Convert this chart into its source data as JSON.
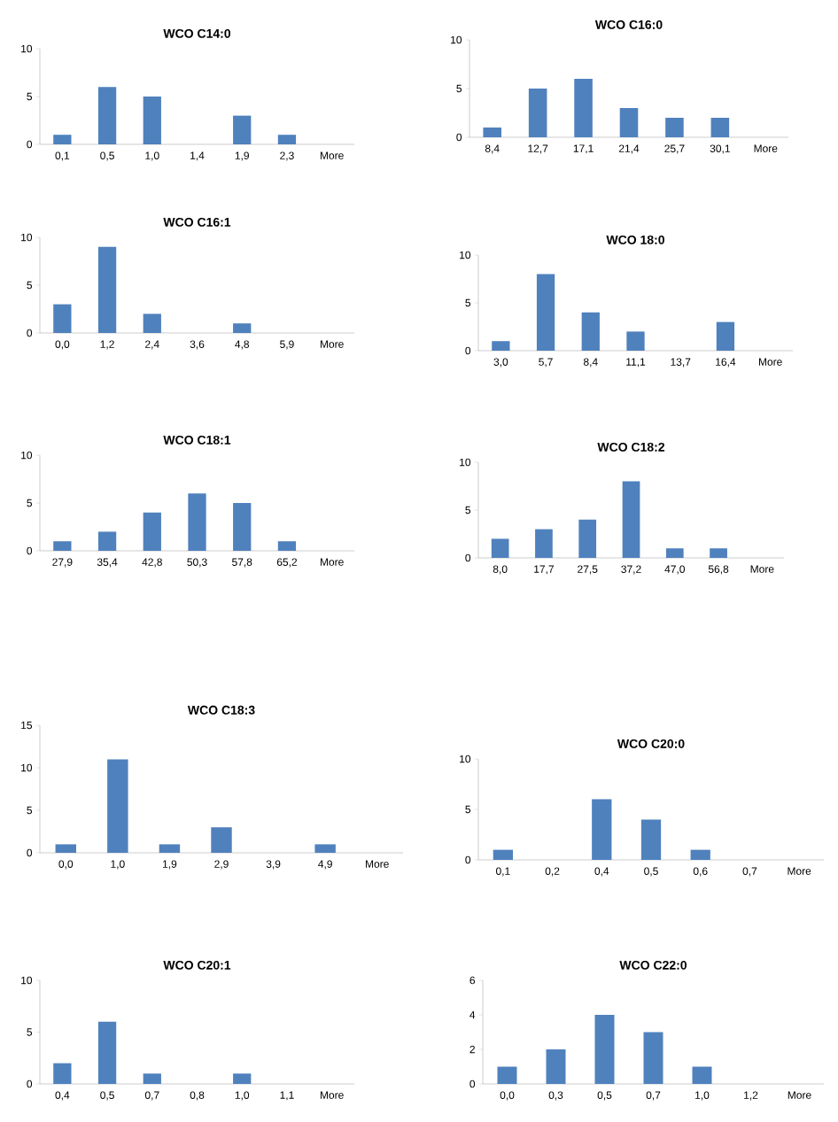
{
  "chart_data": [
    {
      "type": "bar",
      "title": "WCO C14:0",
      "categories": [
        "0,1",
        "0,5",
        "1,0",
        "1,4",
        "1,9",
        "2,3",
        "More"
      ],
      "values": [
        1,
        6,
        5,
        0,
        3,
        1,
        0
      ],
      "color": "#4f81bd",
      "ylim": [
        0,
        10
      ],
      "yticks": [
        0,
        5,
        10
      ]
    },
    {
      "type": "bar",
      "title": "WCO C16:0",
      "categories": [
        "8,4",
        "12,7",
        "17,1",
        "21,4",
        "25,7",
        "30,1",
        "More"
      ],
      "values": [
        1,
        5,
        6,
        3,
        2,
        2,
        0
      ],
      "color": "#4f81bd",
      "ylim": [
        0,
        10
      ],
      "yticks": [
        0,
        5,
        10
      ]
    },
    {
      "type": "bar",
      "title": "WCO C16:1",
      "categories": [
        "0,0",
        "1,2",
        "2,4",
        "3,6",
        "4,8",
        "5,9",
        "More"
      ],
      "values": [
        3,
        9,
        2,
        0,
        1,
        0,
        0
      ],
      "color": "#4f81bd",
      "ylim": [
        0,
        10
      ],
      "yticks": [
        0,
        5,
        10
      ]
    },
    {
      "type": "bar",
      "title": "WCO 18:0",
      "categories": [
        "3,0",
        "5,7",
        "8,4",
        "11,1",
        "13,7",
        "16,4",
        "More"
      ],
      "values": [
        1,
        8,
        4,
        2,
        0,
        3,
        0
      ],
      "color": "#4f81bd",
      "ylim": [
        0,
        10
      ],
      "yticks": [
        0,
        5,
        10
      ]
    },
    {
      "type": "bar",
      "title": "WCO C18:1",
      "categories": [
        "27,9",
        "35,4",
        "42,8",
        "50,3",
        "57,8",
        "65,2",
        "More"
      ],
      "values": [
        1,
        2,
        4,
        6,
        5,
        1,
        0
      ],
      "color": "#4f81bd",
      "ylim": [
        0,
        10
      ],
      "yticks": [
        0,
        5,
        10
      ]
    },
    {
      "type": "bar",
      "title": "WCO C18:2",
      "categories": [
        "8,0",
        "17,7",
        "27,5",
        "37,2",
        "47,0",
        "56,8",
        "More"
      ],
      "values": [
        2,
        3,
        4,
        8,
        1,
        1,
        0
      ],
      "color": "#4f81bd",
      "ylim": [
        0,
        10
      ],
      "yticks": [
        0,
        5,
        10
      ]
    },
    {
      "type": "bar",
      "title": "WCO C18:3",
      "categories": [
        "0,0",
        "1,0",
        "1,9",
        "2,9",
        "3,9",
        "4,9",
        "More"
      ],
      "values": [
        1,
        11,
        1,
        3,
        0,
        1,
        0
      ],
      "color": "#4f81bd",
      "ylim": [
        0,
        15
      ],
      "yticks": [
        0,
        5,
        10,
        15
      ]
    },
    {
      "type": "bar",
      "title": "WCO C20:0",
      "categories": [
        "0,1",
        "0,2",
        "0,4",
        "0,5",
        "0,6",
        "0,7",
        "More"
      ],
      "values": [
        1,
        0,
        6,
        4,
        1,
        0,
        0
      ],
      "color": "#4f81bd",
      "ylim": [
        0,
        10
      ],
      "yticks": [
        0,
        5,
        10
      ]
    },
    {
      "type": "bar",
      "title": "WCO C20:1",
      "categories": [
        "0,4",
        "0,5",
        "0,7",
        "0,8",
        "1,0",
        "1,1",
        "More"
      ],
      "values": [
        2,
        6,
        1,
        0,
        1,
        0,
        0
      ],
      "color": "#4f81bd",
      "ylim": [
        0,
        10
      ],
      "yticks": [
        0,
        5,
        10
      ]
    },
    {
      "type": "bar",
      "title": "WCO C22:0",
      "categories": [
        "0,0",
        "0,3",
        "0,5",
        "0,7",
        "1,0",
        "1,2",
        "More"
      ],
      "values": [
        1,
        2,
        4,
        3,
        1,
        0,
        0
      ],
      "color": "#4f81bd",
      "ylim": [
        0,
        6
      ],
      "yticks": [
        0,
        2,
        4,
        6
      ]
    }
  ]
}
